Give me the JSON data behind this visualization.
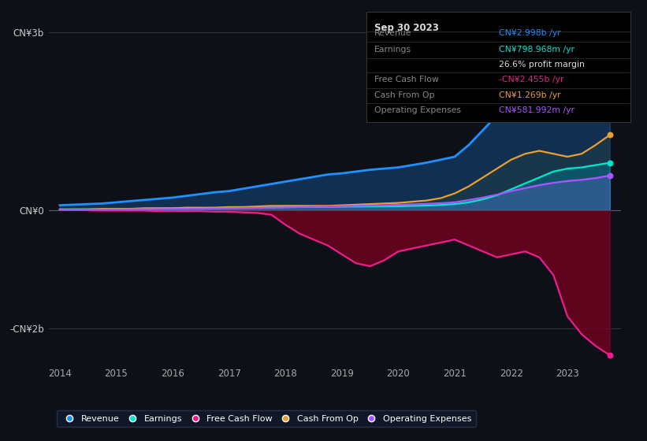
{
  "bg_color": "#0d1117",
  "plot_bg_color": "#0d1117",
  "revenue_color": "#1e90ff",
  "earnings_color": "#00e5cc",
  "free_cash_flow_color": "#e91e8c",
  "cash_from_op_color": "#e8a030",
  "operating_expenses_color": "#aa55ff",
  "ylim": [
    -2.6,
    3.4
  ],
  "yticks": [
    -2.0,
    0.0,
    3.0
  ],
  "ytick_labels": [
    "-CN¥2b",
    "CN¥0",
    "CN¥3b"
  ],
  "xticks": [
    2014,
    2015,
    2016,
    2017,
    2018,
    2019,
    2020,
    2021,
    2022,
    2023
  ],
  "legend_labels": [
    "Revenue",
    "Earnings",
    "Free Cash Flow",
    "Cash From Op",
    "Operating Expenses"
  ],
  "tooltip_title": "Sep 30 2023",
  "tooltip_revenue": "CN¥2.998b /yr",
  "tooltip_earnings": "CN¥798.968m /yr",
  "tooltip_profit_margin": "26.6% profit margin",
  "tooltip_fcf": "-CN¥2.455b /yr",
  "tooltip_cashop": "CN¥1.269b /yr",
  "tooltip_opex": "CN¥581.992m /yr"
}
